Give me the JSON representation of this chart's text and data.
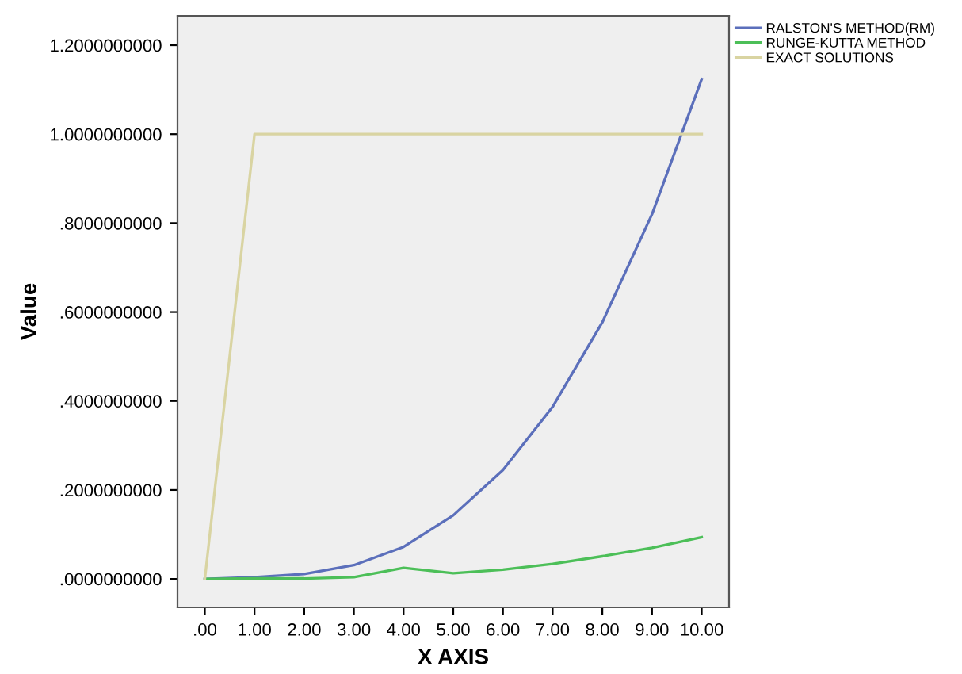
{
  "chart_data": {
    "type": "line",
    "xlabel": "X AXIS",
    "ylabel": "Value",
    "x": [
      0,
      1,
      2,
      3,
      4,
      5,
      6,
      7,
      8,
      9,
      10
    ],
    "series": [
      {
        "name": "RALSTON'S METHOD(RM)",
        "color": "#5b6fbb",
        "values": [
          0,
          0.004,
          0.011,
          0.031,
          0.072,
          0.143,
          0.245,
          0.387,
          0.577,
          0.82,
          1.124
        ]
      },
      {
        "name": "RUNGE-KUTTA METHOD",
        "color": "#4cbf58",
        "values": [
          0,
          0.001,
          0.001,
          0.004,
          0.025,
          0.013,
          0.021,
          0.034,
          0.051,
          0.07,
          0.094
        ]
      },
      {
        "name": "EXACT SOLUTIONS",
        "color": "#d9d4a2",
        "values": [
          0,
          1,
          1,
          1,
          1,
          1,
          1,
          1,
          1,
          1,
          1
        ]
      }
    ],
    "xlim": [
      -0.55,
      10.55
    ],
    "xticks": [
      {
        "value": 0,
        "label": ".00"
      },
      {
        "value": 1,
        "label": "1.00"
      },
      {
        "value": 2,
        "label": "2.00"
      },
      {
        "value": 3,
        "label": "3.00"
      },
      {
        "value": 4,
        "label": "4.00"
      },
      {
        "value": 5,
        "label": "5.00"
      },
      {
        "value": 6,
        "label": "6.00"
      },
      {
        "value": 7,
        "label": "7.00"
      },
      {
        "value": 8,
        "label": "8.00"
      },
      {
        "value": 9,
        "label": "9.00"
      },
      {
        "value": 10,
        "label": "10.00"
      }
    ],
    "ylim": [
      -0.064,
      1.266
    ],
    "yticks": [
      {
        "value": 0,
        "label": ".0000000000"
      },
      {
        "value": 0.2,
        "label": ".2000000000"
      },
      {
        "value": 0.4,
        "label": ".4000000000"
      },
      {
        "value": 0.6,
        "label": ".6000000000"
      },
      {
        "value": 0.8,
        "label": ".8000000000"
      },
      {
        "value": 1.0,
        "label": "1.0000000000"
      },
      {
        "value": 1.2,
        "label": "1.2000000000"
      }
    ],
    "grid": false,
    "legend": "right",
    "marker": "none",
    "line_style": "solid"
  }
}
